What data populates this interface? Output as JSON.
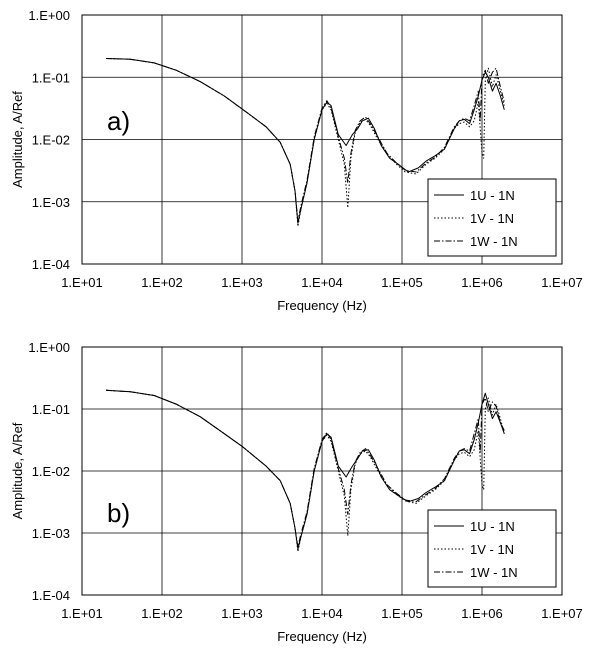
{
  "chart_data": [
    {
      "type": "line",
      "panel_label": "a)",
      "xlabel": "Frequency (Hz)",
      "ylabel": "Amplitude, A/Ref",
      "xscale": "log",
      "yscale": "log",
      "xlim": [
        10,
        10000000
      ],
      "ylim": [
        0.0001,
        1
      ],
      "x_tick_labels": [
        "1.E+01",
        "1.E+02",
        "1.E+03",
        "1.E+04",
        "1.E+05",
        "1.E+06",
        "1.E+07"
      ],
      "y_tick_labels": [
        "1.E+00",
        "1.E-01",
        "1.E-02",
        "1.E-03",
        "1.E-04"
      ],
      "grid": true,
      "legend_position": "bottom-right",
      "series": [
        {
          "name": "1U - 1N",
          "style": "solid",
          "x": [
            20,
            40,
            80,
            150,
            300,
            600,
            1000,
            2000,
            3000,
            4000,
            4600,
            5000,
            5500,
            6500,
            8000,
            10000,
            11500,
            13000,
            16000,
            20000,
            24000,
            28000,
            32000,
            38000,
            45000,
            55000,
            70000,
            90000,
            120000,
            160000,
            200000,
            260000,
            340000,
            450000,
            520000,
            600000,
            700000,
            800000,
            900000,
            1000000,
            1100000,
            1200000,
            1350000,
            1500000,
            1700000,
            1900000
          ],
          "y": [
            0.2,
            0.195,
            0.17,
            0.13,
            0.085,
            0.05,
            0.031,
            0.016,
            0.009,
            0.004,
            0.0015,
            0.00045,
            0.0008,
            0.002,
            0.01,
            0.03,
            0.04,
            0.035,
            0.012,
            0.008,
            0.012,
            0.015,
            0.02,
            0.022,
            0.015,
            0.008,
            0.005,
            0.004,
            0.003,
            0.0035,
            0.0045,
            0.0055,
            0.007,
            0.015,
            0.02,
            0.021,
            0.018,
            0.03,
            0.05,
            0.09,
            0.12,
            0.1,
            0.06,
            0.08,
            0.05,
            0.03
          ]
        },
        {
          "name": "1V - 1N",
          "style": "dotted",
          "x": [
            20,
            40,
            80,
            150,
            300,
            600,
            1000,
            2000,
            3000,
            4000,
            4600,
            5000,
            5500,
            6500,
            8000,
            10000,
            11500,
            13000,
            16000,
            19000,
            21000,
            23000,
            26000,
            30000,
            35000,
            40000,
            50000,
            65000,
            85000,
            110000,
            150000,
            200000,
            260000,
            340000,
            450000,
            520000,
            600000,
            700000,
            800000,
            900000,
            1000000,
            1050000,
            1100000,
            1200000,
            1350000,
            1500000,
            1700000,
            1900000
          ],
          "y": [
            0.2,
            0.195,
            0.17,
            0.13,
            0.085,
            0.05,
            0.031,
            0.016,
            0.009,
            0.004,
            0.0015,
            0.0004,
            0.0008,
            0.002,
            0.01,
            0.03,
            0.038,
            0.03,
            0.01,
            0.004,
            0.0008,
            0.005,
            0.013,
            0.019,
            0.021,
            0.017,
            0.01,
            0.006,
            0.004,
            0.003,
            0.0028,
            0.004,
            0.005,
            0.007,
            0.015,
            0.018,
            0.019,
            0.016,
            0.02,
            0.04,
            0.006,
            0.005,
            0.09,
            0.14,
            0.07,
            0.11,
            0.06,
            0.035
          ]
        },
        {
          "name": "1W - 1N",
          "style": "dashdot",
          "x": [
            20,
            40,
            80,
            150,
            300,
            600,
            1000,
            2000,
            3000,
            4000,
            4600,
            5000,
            5500,
            6500,
            8000,
            10000,
            11500,
            13000,
            16000,
            19000,
            21000,
            23000,
            26000,
            30000,
            35000,
            40000,
            50000,
            65000,
            85000,
            110000,
            150000,
            200000,
            260000,
            340000,
            450000,
            520000,
            600000,
            700000,
            800000,
            900000,
            950000,
            1000000,
            1100000,
            1200000,
            1350000,
            1500000,
            1700000,
            1900000
          ],
          "y": [
            0.2,
            0.195,
            0.17,
            0.13,
            0.085,
            0.05,
            0.031,
            0.016,
            0.009,
            0.004,
            0.0015,
            0.0005,
            0.0009,
            0.0022,
            0.011,
            0.032,
            0.042,
            0.032,
            0.011,
            0.005,
            0.002,
            0.006,
            0.014,
            0.02,
            0.023,
            0.018,
            0.011,
            0.006,
            0.0042,
            0.0032,
            0.003,
            0.0042,
            0.0052,
            0.0075,
            0.016,
            0.02,
            0.022,
            0.02,
            0.035,
            0.06,
            0.02,
            0.1,
            0.13,
            0.08,
            0.12,
            0.14,
            0.07,
            0.04
          ]
        }
      ]
    },
    {
      "type": "line",
      "panel_label": "b)",
      "xlabel": "Frequency (Hz)",
      "ylabel": "Amplitude, A/Ref",
      "xscale": "log",
      "yscale": "log",
      "xlim": [
        10,
        10000000
      ],
      "ylim": [
        0.0001,
        1
      ],
      "x_tick_labels": [
        "1.E+01",
        "1.E+02",
        "1.E+03",
        "1.E+04",
        "1.E+05",
        "1.E+06",
        "1.E+07"
      ],
      "y_tick_labels": [
        "1.E+00",
        "1.E-01",
        "1.E-02",
        "1.E-03",
        "1.E-04"
      ],
      "grid": true,
      "legend_position": "bottom-right",
      "series": [
        {
          "name": "1U - 1N",
          "style": "solid",
          "x": [
            20,
            40,
            80,
            150,
            300,
            600,
            1000,
            2000,
            3000,
            4000,
            4600,
            5000,
            5500,
            6500,
            8000,
            10000,
            11500,
            13000,
            16000,
            20000,
            24000,
            28000,
            32000,
            38000,
            45000,
            55000,
            70000,
            90000,
            120000,
            160000,
            200000,
            260000,
            340000,
            450000,
            520000,
            600000,
            700000,
            800000,
            900000,
            1000000,
            1100000,
            1200000,
            1350000,
            1500000,
            1700000,
            1900000
          ],
          "y": [
            0.2,
            0.19,
            0.165,
            0.12,
            0.075,
            0.04,
            0.025,
            0.012,
            0.007,
            0.003,
            0.0012,
            0.00055,
            0.0009,
            0.002,
            0.01,
            0.03,
            0.04,
            0.035,
            0.012,
            0.008,
            0.012,
            0.016,
            0.021,
            0.022,
            0.015,
            0.008,
            0.005,
            0.004,
            0.0032,
            0.0036,
            0.0045,
            0.0055,
            0.007,
            0.015,
            0.021,
            0.022,
            0.019,
            0.032,
            0.06,
            0.12,
            0.18,
            0.12,
            0.07,
            0.09,
            0.06,
            0.04
          ]
        },
        {
          "name": "1V - 1N",
          "style": "dotted",
          "x": [
            20,
            40,
            80,
            150,
            300,
            600,
            1000,
            2000,
            3000,
            4000,
            4600,
            5000,
            5500,
            6500,
            8000,
            10000,
            11500,
            13000,
            16000,
            19000,
            21000,
            23000,
            26000,
            30000,
            35000,
            40000,
            50000,
            65000,
            85000,
            110000,
            150000,
            200000,
            260000,
            340000,
            450000,
            520000,
            600000,
            700000,
            800000,
            900000,
            1000000,
            1050000,
            1100000,
            1200000,
            1350000,
            1500000,
            1700000,
            1900000
          ],
          "y": [
            0.2,
            0.19,
            0.165,
            0.12,
            0.075,
            0.04,
            0.025,
            0.012,
            0.007,
            0.003,
            0.0012,
            0.0005,
            0.0009,
            0.002,
            0.01,
            0.03,
            0.038,
            0.03,
            0.01,
            0.004,
            0.0009,
            0.005,
            0.013,
            0.019,
            0.021,
            0.017,
            0.01,
            0.006,
            0.0042,
            0.0033,
            0.003,
            0.004,
            0.005,
            0.007,
            0.015,
            0.019,
            0.02,
            0.017,
            0.022,
            0.045,
            0.006,
            0.005,
            0.1,
            0.15,
            0.08,
            0.12,
            0.07,
            0.04
          ]
        },
        {
          "name": "1W - 1N",
          "style": "dashdot",
          "x": [
            20,
            40,
            80,
            150,
            300,
            600,
            1000,
            2000,
            3000,
            4000,
            4600,
            5000,
            5500,
            6500,
            8000,
            10000,
            11500,
            13000,
            16000,
            19000,
            21000,
            23000,
            26000,
            30000,
            35000,
            40000,
            50000,
            65000,
            85000,
            110000,
            150000,
            200000,
            260000,
            340000,
            450000,
            520000,
            600000,
            700000,
            800000,
            900000,
            950000,
            1000000,
            1100000,
            1200000,
            1350000,
            1500000,
            1700000,
            1900000
          ],
          "y": [
            0.2,
            0.19,
            0.165,
            0.12,
            0.075,
            0.04,
            0.025,
            0.012,
            0.007,
            0.003,
            0.0012,
            0.0006,
            0.001,
            0.0022,
            0.011,
            0.032,
            0.042,
            0.032,
            0.011,
            0.005,
            0.002,
            0.006,
            0.014,
            0.02,
            0.023,
            0.018,
            0.011,
            0.006,
            0.0044,
            0.0034,
            0.0032,
            0.0042,
            0.0052,
            0.0075,
            0.016,
            0.021,
            0.023,
            0.021,
            0.04,
            0.07,
            0.02,
            0.12,
            0.15,
            0.09,
            0.13,
            0.11,
            0.06,
            0.045
          ]
        }
      ]
    }
  ]
}
